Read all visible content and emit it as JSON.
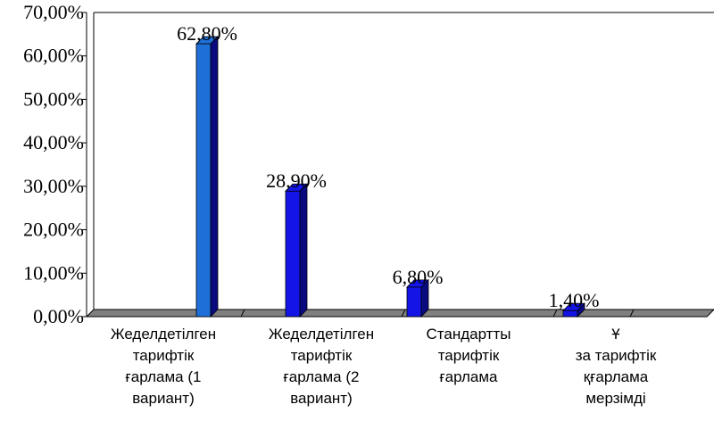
{
  "chart_data": {
    "type": "bar3d",
    "categories": [
      "Жеделдетілген\nтарифтік\nғарлама (1\nвариант)",
      "Жеделдетілген\nтарифтік\nғарлама (2\nвариант)",
      "Стандартты\nтарифтік\nғарлама",
      "Ұ\nза тарифтік\nқғарлама\nмерзімді"
    ],
    "values": [
      62.8,
      28.9,
      6.8,
      1.4
    ],
    "value_labels": [
      "62,80%",
      "28,90%",
      "6,80%",
      "1,40%"
    ],
    "colors": [
      "#1f6fd8",
      "#1414e6",
      "#1414e6",
      "#1414e6"
    ],
    "ylim": [
      0,
      70
    ],
    "yticks": [
      {
        "value": 0,
        "label": "0,00%"
      },
      {
        "value": 10,
        "label": "10,00%"
      },
      {
        "value": 20,
        "label": "20,00%"
      },
      {
        "value": 30,
        "label": "30,00%"
      },
      {
        "value": 40,
        "label": "40,00%"
      },
      {
        "value": 50,
        "label": "50,00%"
      },
      {
        "value": 60,
        "label": "60,00%"
      },
      {
        "value": 70,
        "label": "70,00%"
      }
    ]
  }
}
